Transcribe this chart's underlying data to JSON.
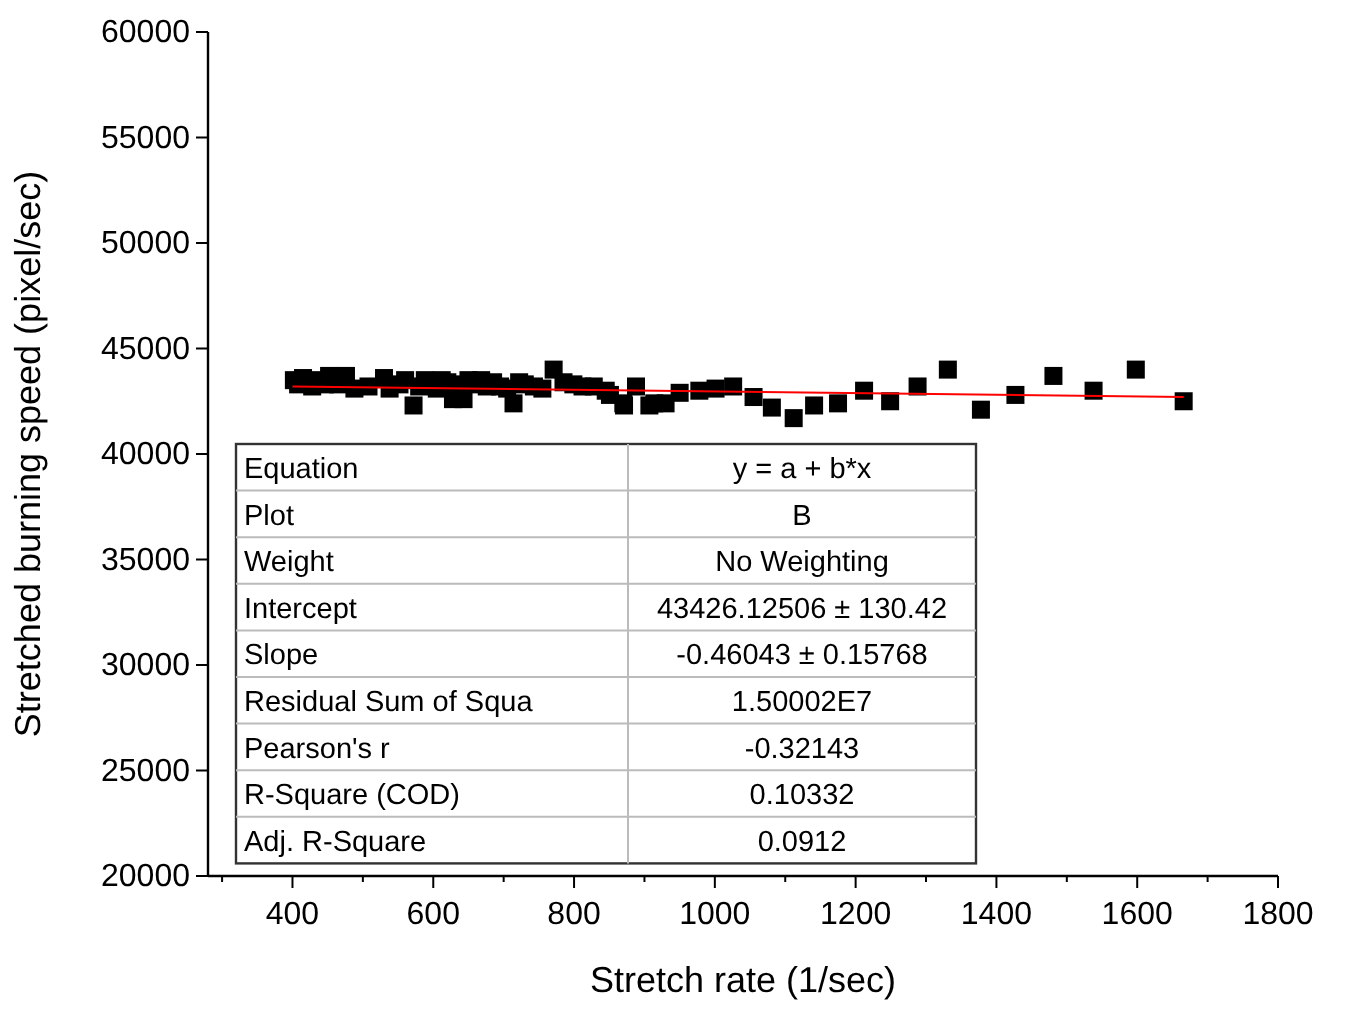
{
  "chart_data": {
    "type": "scatter",
    "xlabel": "Stretch rate (1/sec)",
    "ylabel": "Stretched burning speed (pixel/sec)",
    "xlim": [
      280,
      1800
    ],
    "ylim": [
      20000,
      60000
    ],
    "xticks": [
      {
        "value": 300,
        "label": null
      },
      400,
      {
        "value": 500,
        "label": null
      },
      600,
      {
        "value": 700,
        "label": null
      },
      800,
      {
        "value": 900,
        "label": null
      },
      1000,
      {
        "value": 1100,
        "label": null
      },
      1200,
      {
        "value": 1300,
        "label": null
      },
      1400,
      {
        "value": 1500,
        "label": null
      },
      1600,
      {
        "value": 1700,
        "label": null
      },
      1800
    ],
    "yticks": [
      20000,
      25000,
      30000,
      35000,
      40000,
      45000,
      50000,
      55000,
      60000
    ],
    "grid": false,
    "marker": "square",
    "series": [
      {
        "color": "#000000",
        "x": [
          402,
          408,
          415,
          428,
          435,
          446,
          452,
          465,
          476,
          488,
          508,
          530,
          538,
          552,
          560,
          572,
          580,
          588,
          605,
          612,
          620,
          628,
          635,
          643,
          650,
          660,
          668,
          676,
          685,
          695,
          705,
          714,
          722,
          730,
          743,
          755,
          771,
          785,
          799,
          812,
          828,
          845,
          851,
          870,
          871,
          888,
          907,
          914,
          930,
          950,
          978,
          1001,
          1026,
          1055,
          1081,
          1112,
          1141,
          1175,
          1212,
          1249,
          1288,
          1331,
          1378,
          1427,
          1481,
          1538,
          1598,
          1666
        ],
        "values": [
          43500,
          43300,
          43600,
          43200,
          43500,
          43300,
          43700,
          43300,
          43700,
          43100,
          43200,
          43600,
          43100,
          43300,
          43500,
          42300,
          43200,
          43500,
          43100,
          43500,
          43400,
          42600,
          43300,
          42600,
          43500,
          43300,
          43500,
          43200,
          43400,
          43200,
          43100,
          42400,
          43400,
          43300,
          43200,
          43100,
          44000,
          43400,
          43300,
          43200,
          43200,
          43000,
          42800,
          42400,
          42300,
          43200,
          42300,
          42400,
          42400,
          42900,
          43000,
          43100,
          43200,
          42700,
          42200,
          41700,
          42300,
          42400,
          43000,
          42500,
          43200,
          44000,
          42100,
          42800,
          43700,
          43000,
          44000,
          42500
        ]
      },
      {
        "type": "line",
        "color": "#ff0000",
        "marker": "none",
        "x": [
          400,
          1666
        ],
        "values": [
          43200,
          42700
        ]
      }
    ],
    "annotations": [
      "Equation",
      "y = a + b*x",
      "Plot",
      "B",
      "Weight",
      "No Weighting",
      "Intercept",
      "43426.12506 ± 130.42",
      "Slope",
      "-0.46043 ± 0.15768",
      "Residual Sum of Squa",
      "1.50002E7",
      "Pearson's r",
      "-0.32143",
      "R-Square (COD)",
      "0.10332",
      "Adj. R-Square",
      "0.0912"
    ]
  }
}
